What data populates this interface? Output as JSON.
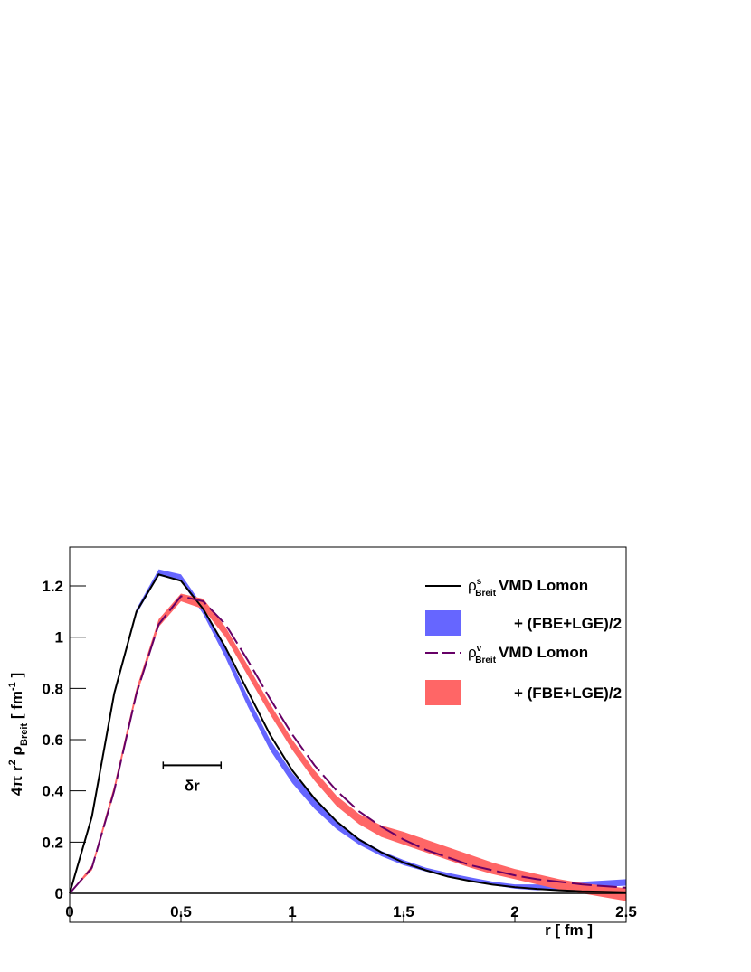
{
  "chart_data": {
    "type": "line",
    "y_label_parts": [
      "4π r",
      "2",
      " ρ",
      "Breit",
      "  [ fm",
      "-1",
      " ]"
    ],
    "x_label": "r  [ fm ]",
    "x": [
      0,
      0.1,
      0.2,
      0.3,
      0.4,
      0.5,
      0.6,
      0.7,
      0.8,
      0.9,
      1.0,
      1.1,
      1.2,
      1.3,
      1.4,
      1.5,
      1.6,
      1.7,
      1.8,
      1.9,
      2.0,
      2.1,
      2.2,
      2.3,
      2.4,
      2.5
    ],
    "xlim": [
      0,
      2.5
    ],
    "xticks": [
      0,
      0.5,
      1,
      1.5,
      2,
      2.5
    ],
    "ylim": [
      -0.113,
      1.352
    ],
    "yticks": [
      0,
      0.2,
      0.4,
      0.6,
      0.8,
      1,
      1.2
    ],
    "series": [
      {
        "kind": "line",
        "symbol": "ρ",
        "sup": "s",
        "sub": "Breit",
        "name": "VMD Lomon",
        "color": "#000000",
        "dash": false,
        "values": [
          0,
          0.3,
          0.78,
          1.1,
          1.245,
          1.22,
          1.11,
          0.96,
          0.79,
          0.62,
          0.48,
          0.37,
          0.28,
          0.21,
          0.16,
          0.12,
          0.09,
          0.065,
          0.048,
          0.034,
          0.024,
          0.017,
          0.012,
          0.008,
          0.006,
          0.004
        ]
      },
      {
        "kind": "band",
        "name": "+ (FBE+LGE)/2",
        "color": "#6666ff",
        "lower": [
          0,
          0.29,
          0.77,
          1.09,
          1.24,
          1.22,
          1.09,
          0.92,
          0.73,
          0.56,
          0.43,
          0.33,
          0.25,
          0.19,
          0.145,
          0.11,
          0.085,
          0.065,
          0.048,
          0.032,
          0.018,
          0.012,
          0.015,
          0.02,
          0.025,
          0.03
        ],
        "upper": [
          0,
          0.31,
          0.79,
          1.11,
          1.265,
          1.245,
          1.12,
          0.955,
          0.77,
          0.6,
          0.47,
          0.37,
          0.28,
          0.215,
          0.165,
          0.13,
          0.1,
          0.08,
          0.062,
          0.046,
          0.035,
          0.035,
          0.04,
          0.045,
          0.05,
          0.055
        ]
      },
      {
        "kind": "line",
        "symbol": "ρ",
        "sup": "v",
        "sub": "Breit",
        "name": "VMD Lomon",
        "color": "#660066",
        "dash": true,
        "values": [
          0,
          0.1,
          0.4,
          0.78,
          1.05,
          1.16,
          1.14,
          1.05,
          0.91,
          0.76,
          0.62,
          0.5,
          0.4,
          0.32,
          0.26,
          0.21,
          0.17,
          0.14,
          0.11,
          0.09,
          0.07,
          0.055,
          0.045,
          0.035,
          0.028,
          0.022
        ]
      },
      {
        "kind": "band",
        "name": "+ (FBE+LGE)/2",
        "color": "#ff6666",
        "lower": [
          0,
          0.09,
          0.39,
          0.77,
          1.04,
          1.14,
          1.11,
          1.0,
          0.85,
          0.7,
          0.56,
          0.44,
          0.34,
          0.27,
          0.22,
          0.19,
          0.16,
          0.13,
          0.1,
          0.075,
          0.055,
          0.035,
          0.015,
          0.0,
          -0.015,
          -0.03
        ],
        "upper": [
          0,
          0.11,
          0.42,
          0.8,
          1.07,
          1.17,
          1.15,
          1.04,
          0.89,
          0.74,
          0.6,
          0.48,
          0.38,
          0.31,
          0.265,
          0.24,
          0.21,
          0.18,
          0.15,
          0.12,
          0.095,
          0.075,
          0.055,
          0.04,
          0.03,
          0.02
        ]
      }
    ],
    "annotation": {
      "text": "δr",
      "x": [
        0.42,
        0.68
      ],
      "y": 0.5
    },
    "zero_line": 0
  }
}
